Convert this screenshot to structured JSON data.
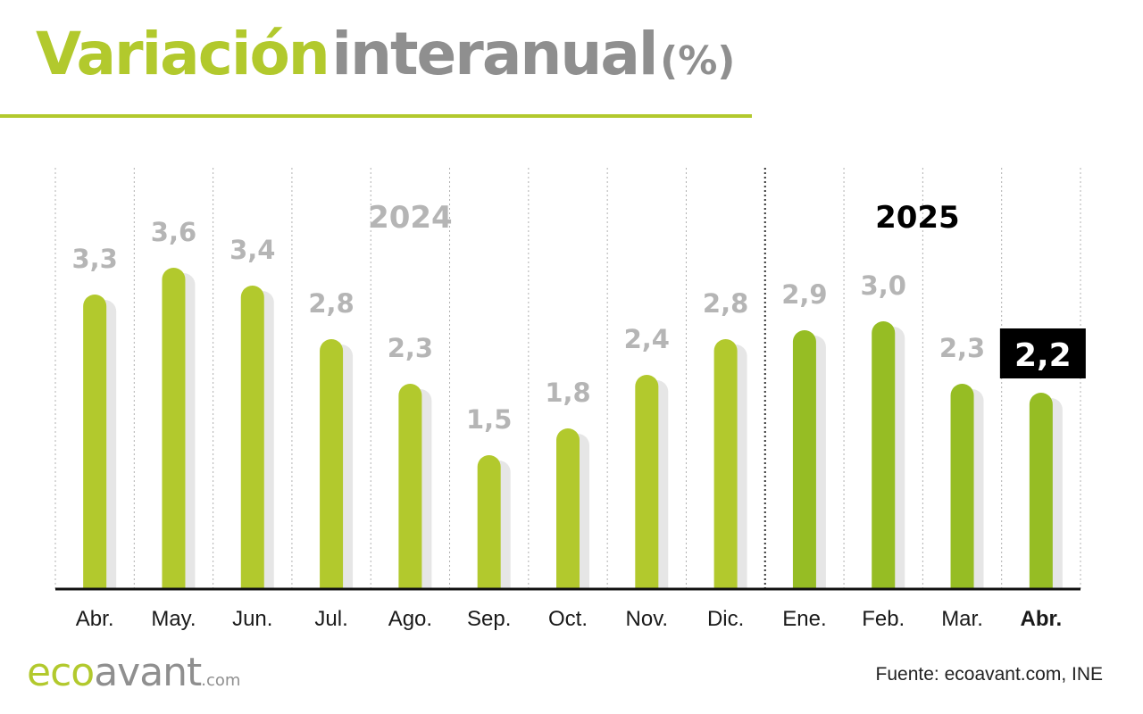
{
  "header": {
    "title_part1": "Variación",
    "title_part2": "interanual",
    "title_part3": "(%)"
  },
  "colors": {
    "accent": "#b2c92d",
    "accent_dark": "#96bd24",
    "grey_text": "#8f8f8f",
    "value_label": "#b5b5b5",
    "shadow": "#e6e6e6"
  },
  "chart_data": {
    "type": "bar",
    "categories": [
      "Abr.",
      "May.",
      "Jun.",
      "Jul.",
      "Ago.",
      "Sep.",
      "Oct.",
      "Nov.",
      "Dic.",
      "Ene.",
      "Feb.",
      "Mar.",
      "Abr."
    ],
    "values": [
      3.3,
      3.6,
      3.4,
      2.8,
      2.3,
      1.5,
      1.8,
      2.4,
      2.8,
      2.9,
      3.0,
      2.3,
      2.2
    ],
    "value_labels": [
      "3,3",
      "3,6",
      "3,4",
      "2,8",
      "2,3",
      "1,5",
      "1,8",
      "2,4",
      "2,8",
      "2,9",
      "3,0",
      "2,3",
      "2,2"
    ],
    "year_groups": [
      {
        "label": "2024",
        "start": 0,
        "end": 8
      },
      {
        "label": "2025",
        "start": 9,
        "end": 12
      }
    ],
    "highlight_index": 12,
    "ylim": [
      0,
      3.8
    ],
    "grid": "vertical-dotted"
  },
  "footer": {
    "logo_eco": "eco",
    "logo_avant": "avant",
    "logo_domain": ".com",
    "source": "Fuente: ecoavant.com, INE"
  }
}
